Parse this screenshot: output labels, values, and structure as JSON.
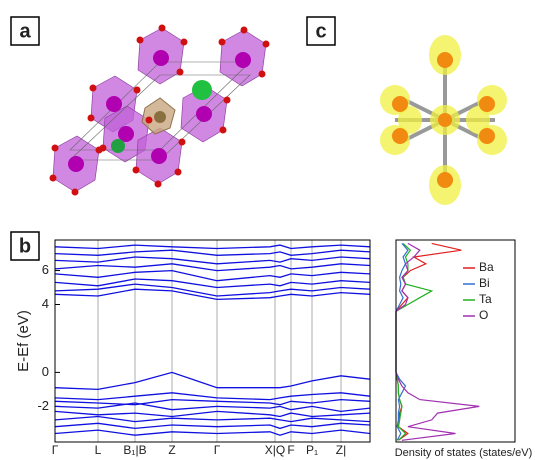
{
  "panel_labels": [
    "a",
    "c",
    "b"
  ],
  "chart_data": [
    {
      "type": "line",
      "color": "#1010e0",
      "ylabel": "E-Ef (eV)",
      "x": [
        0,
        0.43,
        0.8,
        1.17,
        1.62,
        2.15,
        2.25,
        2.36,
        2.57,
        2.86,
        3.15
      ],
      "xlim": [
        0,
        3.15
      ],
      "xticks": [
        {
          "value": 0,
          "label": "Γ"
        },
        {
          "value": 0.43,
          "label": "L"
        },
        {
          "value": 0.8,
          "label": "B₁|B"
        },
        {
          "value": 1.17,
          "label": "Z"
        },
        {
          "value": 1.62,
          "label": "Γ"
        },
        {
          "value": 2.2,
          "label": "X|Q"
        },
        {
          "value": 2.36,
          "label": "F"
        },
        {
          "value": 2.57,
          "label": "P₁"
        },
        {
          "value": 2.86,
          "label": "Z|"
        }
      ],
      "ylim": [
        -4.1,
        7.8
      ],
      "yticks": [
        -2,
        0,
        4,
        6
      ],
      "series": [
        {
          "values": [
            -0.9,
            -1.0,
            -0.6,
            0.0,
            -0.9,
            -0.9,
            -0.9,
            -0.8,
            -0.5,
            -0.2,
            -0.4
          ]
        },
        {
          "values": [
            -1.5,
            -1.6,
            -1.4,
            -1.2,
            -1.5,
            -1.6,
            -1.5,
            -1.4,
            -1.3,
            -1.2,
            -1.4
          ]
        },
        {
          "values": [
            -1.7,
            -1.8,
            -1.9,
            -1.6,
            -1.7,
            -1.8,
            -1.9,
            -1.7,
            -1.8,
            -1.6,
            -1.7
          ]
        },
        {
          "values": [
            -2.0,
            -2.1,
            -1.8,
            -2.2,
            -2.0,
            -2.1,
            -2.0,
            -2.2,
            -2.0,
            -2.3,
            -2.1
          ]
        },
        {
          "values": [
            -2.3,
            -2.5,
            -2.4,
            -2.6,
            -2.3,
            -2.5,
            -2.6,
            -2.4,
            -2.6,
            -2.5,
            -2.4
          ]
        },
        {
          "values": [
            -2.8,
            -2.6,
            -2.9,
            -2.7,
            -2.8,
            -2.7,
            -2.8,
            -2.9,
            -2.7,
            -2.8,
            -2.9
          ]
        },
        {
          "values": [
            -3.2,
            -3.0,
            -3.3,
            -3.1,
            -3.2,
            -3.1,
            -3.3,
            -3.1,
            -3.2,
            -3.0,
            -3.1
          ]
        },
        {
          "values": [
            -3.6,
            -3.4,
            -3.7,
            -3.5,
            -3.6,
            -3.5,
            -3.7,
            -3.5,
            -3.6,
            -3.4,
            -3.6
          ]
        },
        {
          "values": [
            4.6,
            4.5,
            4.9,
            4.8,
            4.3,
            4.4,
            4.5,
            4.6,
            4.5,
            4.7,
            4.6
          ]
        },
        {
          "values": [
            4.8,
            4.9,
            5.2,
            5.0,
            4.5,
            4.7,
            4.8,
            4.9,
            4.8,
            5.0,
            4.9
          ]
        },
        {
          "values": [
            5.3,
            5.1,
            5.5,
            5.4,
            5.0,
            5.2,
            5.1,
            5.3,
            5.2,
            5.4,
            5.3
          ]
        },
        {
          "values": [
            5.8,
            5.6,
            5.9,
            6.0,
            5.4,
            5.7,
            5.6,
            5.8,
            5.7,
            5.9,
            5.8
          ]
        },
        {
          "values": [
            6.1,
            6.3,
            6.2,
            6.4,
            6.0,
            6.2,
            6.3,
            6.1,
            6.2,
            6.4,
            6.3
          ]
        },
        {
          "values": [
            6.6,
            6.5,
            6.8,
            6.7,
            6.4,
            6.6,
            6.5,
            6.7,
            6.6,
            6.8,
            6.7
          ]
        },
        {
          "values": [
            7.0,
            6.9,
            7.1,
            7.2,
            6.9,
            7.0,
            7.1,
            6.9,
            7.0,
            7.2,
            7.1
          ]
        },
        {
          "values": [
            7.4,
            7.3,
            7.5,
            7.4,
            7.3,
            7.4,
            7.5,
            7.3,
            7.4,
            7.5,
            7.4
          ]
        }
      ]
    },
    {
      "type": "line",
      "orientation": "horizontal",
      "legend": "upper right",
      "xlabel": "Density of states (states/eV)",
      "xlim": [
        0,
        1
      ],
      "ylim": [
        -4.1,
        7.8
      ],
      "y": [
        -4,
        -3.6,
        -3.2,
        -2.8,
        -2.4,
        -2,
        -1.6,
        -1.2,
        -0.8,
        -0.4,
        0,
        2,
        3.6,
        4,
        4.4,
        4.8,
        5.2,
        5.6,
        6,
        6.4,
        6.8,
        7.2,
        7.6
      ],
      "series": [
        {
          "name": "Ba",
          "color": "#e02020",
          "values": [
            0.02,
            0.1,
            0.02,
            0.03,
            0.03,
            0.05,
            0.03,
            0.02,
            0.02,
            0.01,
            0,
            0,
            0,
            0.05,
            0.1,
            0.05,
            0.08,
            0.06,
            0.12,
            0.25,
            0.15,
            0.55,
            0.3
          ]
        },
        {
          "name": "Bi",
          "color": "#3070d0",
          "values": [
            0.01,
            0.04,
            0.01,
            0.02,
            0.02,
            0.03,
            0.02,
            0.05,
            0.08,
            0.03,
            0,
            0,
            0,
            0.03,
            0.06,
            0.03,
            0.04,
            0.03,
            0.05,
            0.08,
            0.06,
            0.1,
            0.05
          ]
        },
        {
          "name": "Ta",
          "color": "#20b020",
          "values": [
            0.02,
            0.08,
            0.02,
            0.03,
            0.04,
            0.05,
            0.03,
            0.02,
            0.02,
            0.01,
            0,
            0,
            0,
            0.1,
            0.2,
            0.3,
            0.08,
            0.06,
            0.1,
            0.1,
            0.08,
            0.12,
            0.06
          ]
        },
        {
          "name": "O",
          "color": "#a030b0",
          "values": [
            0.05,
            0.5,
            0.1,
            0.3,
            0.35,
            0.7,
            0.2,
            0.1,
            0.05,
            0.02,
            0,
            0,
            0,
            0.08,
            0.1,
            0.05,
            0.08,
            0.05,
            0.1,
            0.08,
            0.15,
            0.2,
            0.1
          ]
        }
      ]
    }
  ]
}
